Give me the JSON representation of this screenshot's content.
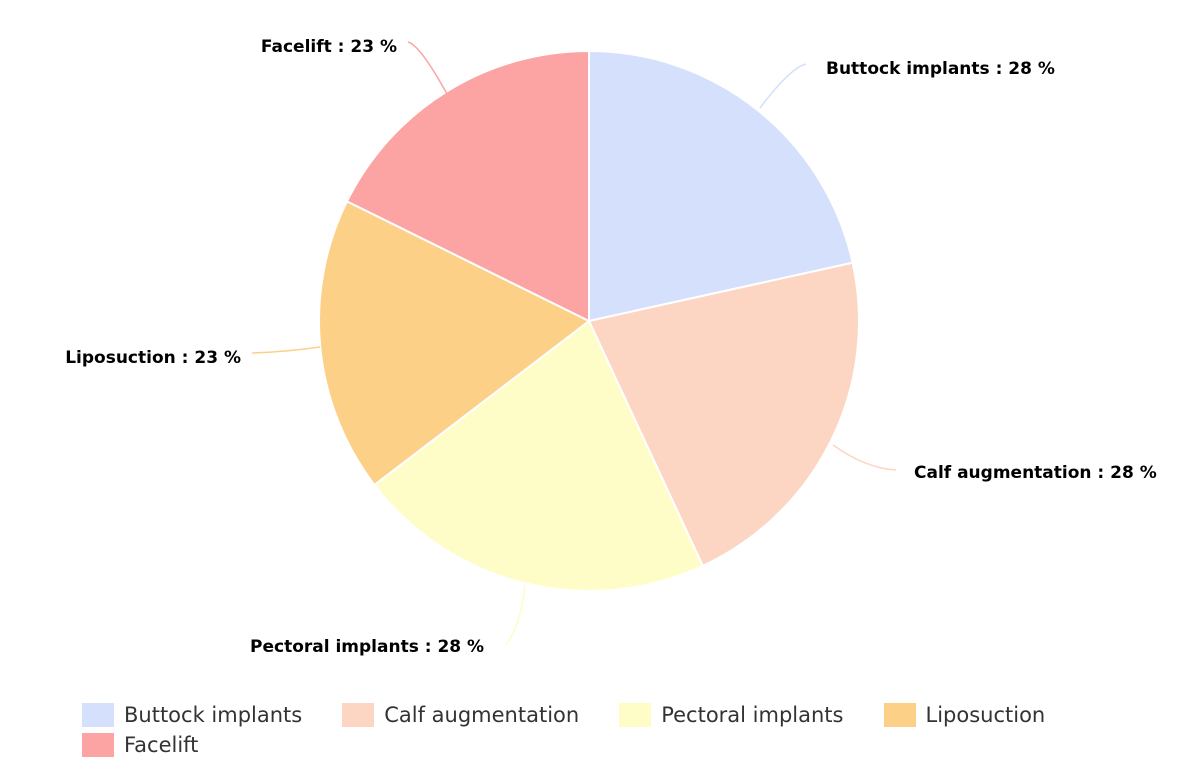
{
  "chart_data": {
    "type": "pie",
    "title": "",
    "start_angle_deg": 0,
    "direction": "clockwise",
    "slices": [
      {
        "name": "Buttock implants",
        "value": 28,
        "label": "Buttock implants : 28 %",
        "color": "#d5e0fc"
      },
      {
        "name": "Calf augmentation",
        "value": 28,
        "label": "Calf augmentation : 28 %",
        "color": "#fdd5c3"
      },
      {
        "name": "Pectoral implants",
        "value": 28,
        "label": "Pectoral implants : 28 %",
        "color": "#fefdc7"
      },
      {
        "name": "Liposuction",
        "value": 23,
        "label": "Liposuction : 23 %",
        "color": "#fdd088"
      },
      {
        "name": "Facelift",
        "value": 23,
        "label": "Facelift : 23 %",
        "color": "#fca4a3"
      }
    ],
    "legend": {
      "placement": "bottom",
      "entries": [
        "Buttock implants",
        "Calf augmentation",
        "Pectoral implants",
        "Liposuction",
        "Facelift"
      ]
    }
  }
}
